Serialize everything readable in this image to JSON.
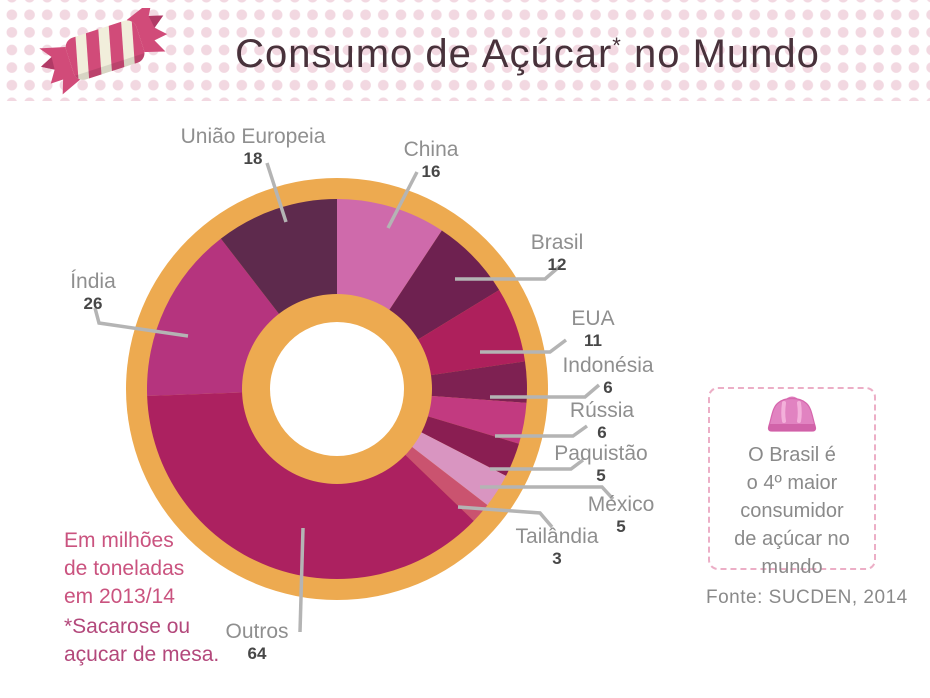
{
  "header": {
    "title_main": "Consumo de Açúcar",
    "title_sup": "*",
    "title_tail": " no Mundo"
  },
  "chart_data": {
    "type": "pie",
    "subtype": "donut",
    "title": "Consumo de Açúcar no Mundo",
    "units": "milhões de toneladas, 2013/14",
    "start_angle_deg": 0,
    "direction": "clockwise",
    "ring_color": "#edaa50",
    "hole_color": "#ffffff",
    "slices": [
      {
        "label": "China",
        "value": 16,
        "color": "#cf6aab"
      },
      {
        "label": "Brasil",
        "value": 12,
        "color": "#6e2150"
      },
      {
        "label": "EUA",
        "value": 11,
        "color": "#ae205c"
      },
      {
        "label": "Indonésia",
        "value": 6,
        "color": "#7e2152"
      },
      {
        "label": "Rússia",
        "value": 6,
        "color": "#c23a80"
      },
      {
        "label": "Paquistão",
        "value": 5,
        "color": "#8a1e52"
      },
      {
        "label": "México",
        "value": 5,
        "color": "#d995c1"
      },
      {
        "label": "Tailândia",
        "value": 3,
        "color": "#ca536f"
      },
      {
        "label": "Outros",
        "value": 64,
        "color": "#ac2160"
      },
      {
        "label": "Índia",
        "value": 26,
        "color": "#b5347e"
      },
      {
        "label": "União Europeia",
        "value": 18,
        "color": "#5e2a4d"
      }
    ]
  },
  "notes": {
    "units": "Em milhões\nde toneladas\nem 2013/14",
    "footnote": "*Sacarose ou\naçucar de mesa."
  },
  "info_box": {
    "text": "O Brasil é\no 4º maior\nconsumidor\nde açúcar no\nmundo"
  },
  "source": "Fonte: SUCDEN, 2014"
}
